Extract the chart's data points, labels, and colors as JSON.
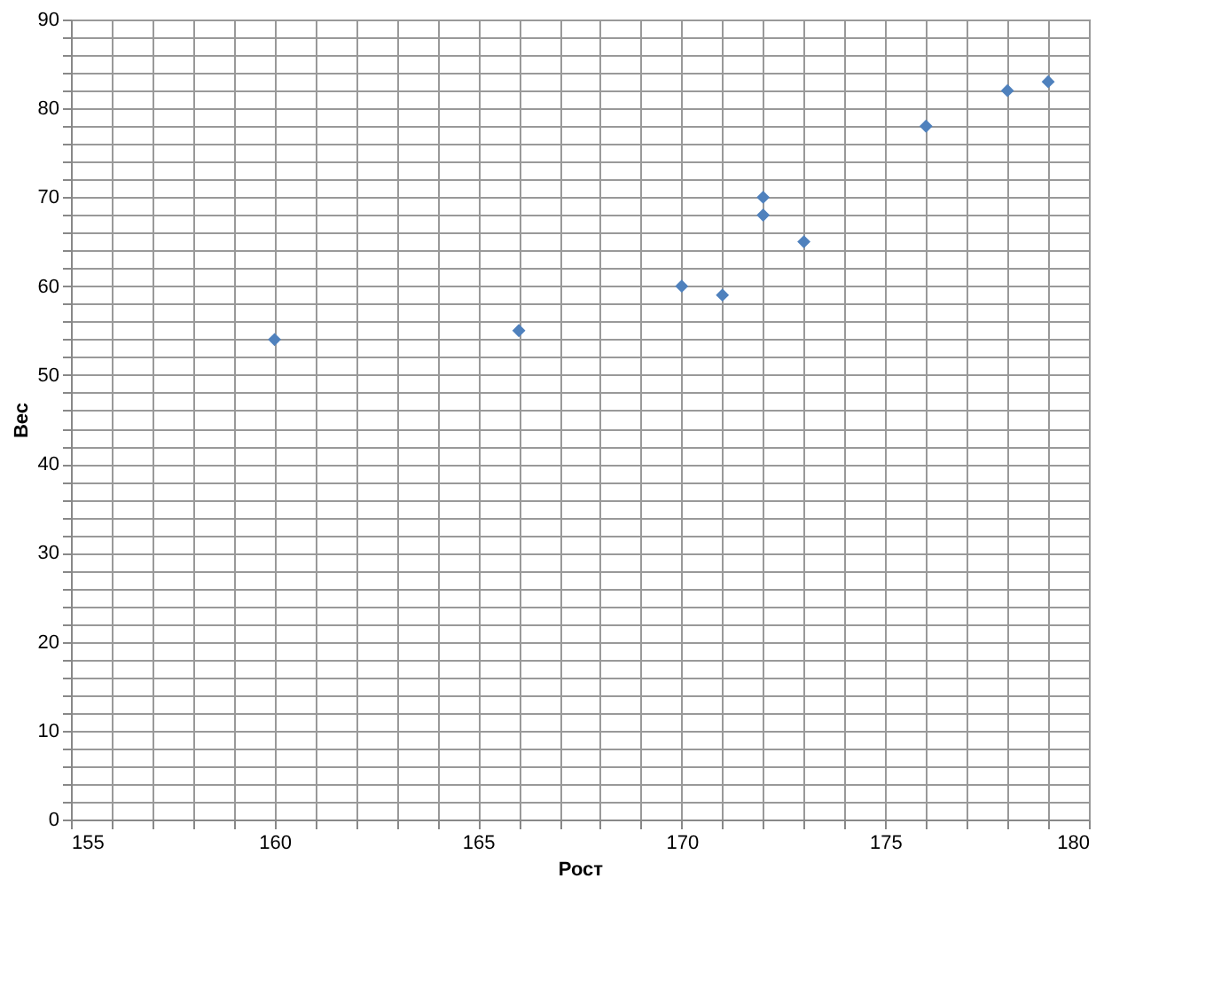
{
  "chart_data": {
    "type": "scatter",
    "xlabel": "Рост",
    "ylabel": "Вес",
    "x": [
      160,
      166,
      170,
      171,
      172,
      172,
      173,
      176,
      178,
      179
    ],
    "series": [
      {
        "color": "#4f81bd",
        "values": [
          54,
          55,
          60,
          59,
          70,
          68,
          65,
          78,
          82,
          83
        ]
      }
    ],
    "xlim": [
      155,
      180
    ],
    "xticks": [
      155,
      {
        "value": 156,
        "label": null
      },
      {
        "value": 157,
        "label": null
      },
      {
        "value": 158,
        "label": null
      },
      {
        "value": 159,
        "label": null
      },
      160,
      {
        "value": 161,
        "label": null
      },
      {
        "value": 162,
        "label": null
      },
      {
        "value": 163,
        "label": null
      },
      {
        "value": 164,
        "label": null
      },
      165,
      {
        "value": 166,
        "label": null
      },
      {
        "value": 167,
        "label": null
      },
      {
        "value": 168,
        "label": null
      },
      {
        "value": 169,
        "label": null
      },
      170,
      {
        "value": 171,
        "label": null
      },
      {
        "value": 172,
        "label": null
      },
      {
        "value": 173,
        "label": null
      },
      {
        "value": 174,
        "label": null
      },
      175,
      {
        "value": 176,
        "label": null
      },
      {
        "value": 177,
        "label": null
      },
      {
        "value": 178,
        "label": null
      },
      {
        "value": 179,
        "label": null
      },
      180
    ],
    "ylim": [
      0,
      90
    ],
    "yticks": [
      0,
      {
        "value": 2,
        "label": null
      },
      {
        "value": 4,
        "label": null
      },
      {
        "value": 6,
        "label": null
      },
      {
        "value": 8,
        "label": null
      },
      10,
      {
        "value": 12,
        "label": null
      },
      {
        "value": 14,
        "label": null
      },
      {
        "value": 16,
        "label": null
      },
      {
        "value": 18,
        "label": null
      },
      20,
      {
        "value": 22,
        "label": null
      },
      {
        "value": 24,
        "label": null
      },
      {
        "value": 26,
        "label": null
      },
      {
        "value": 28,
        "label": null
      },
      30,
      {
        "value": 32,
        "label": null
      },
      {
        "value": 34,
        "label": null
      },
      {
        "value": 36,
        "label": null
      },
      {
        "value": 38,
        "label": null
      },
      40,
      {
        "value": 42,
        "label": null
      },
      {
        "value": 44,
        "label": null
      },
      {
        "value": 46,
        "label": null
      },
      {
        "value": 48,
        "label": null
      },
      50,
      {
        "value": 52,
        "label": null
      },
      {
        "value": 54,
        "label": null
      },
      {
        "value": 56,
        "label": null
      },
      {
        "value": 58,
        "label": null
      },
      60,
      {
        "value": 62,
        "label": null
      },
      {
        "value": 64,
        "label": null
      },
      {
        "value": 66,
        "label": null
      },
      {
        "value": 68,
        "label": null
      },
      70,
      {
        "value": 72,
        "label": null
      },
      {
        "value": 74,
        "label": null
      },
      {
        "value": 76,
        "label": null
      },
      {
        "value": 78,
        "label": null
      },
      80,
      {
        "value": 82,
        "label": null
      },
      {
        "value": 84,
        "label": null
      },
      {
        "value": 86,
        "label": null
      },
      {
        "value": 88,
        "label": null
      },
      90
    ],
    "grid": true,
    "legend": false,
    "marker": "diamond"
  }
}
